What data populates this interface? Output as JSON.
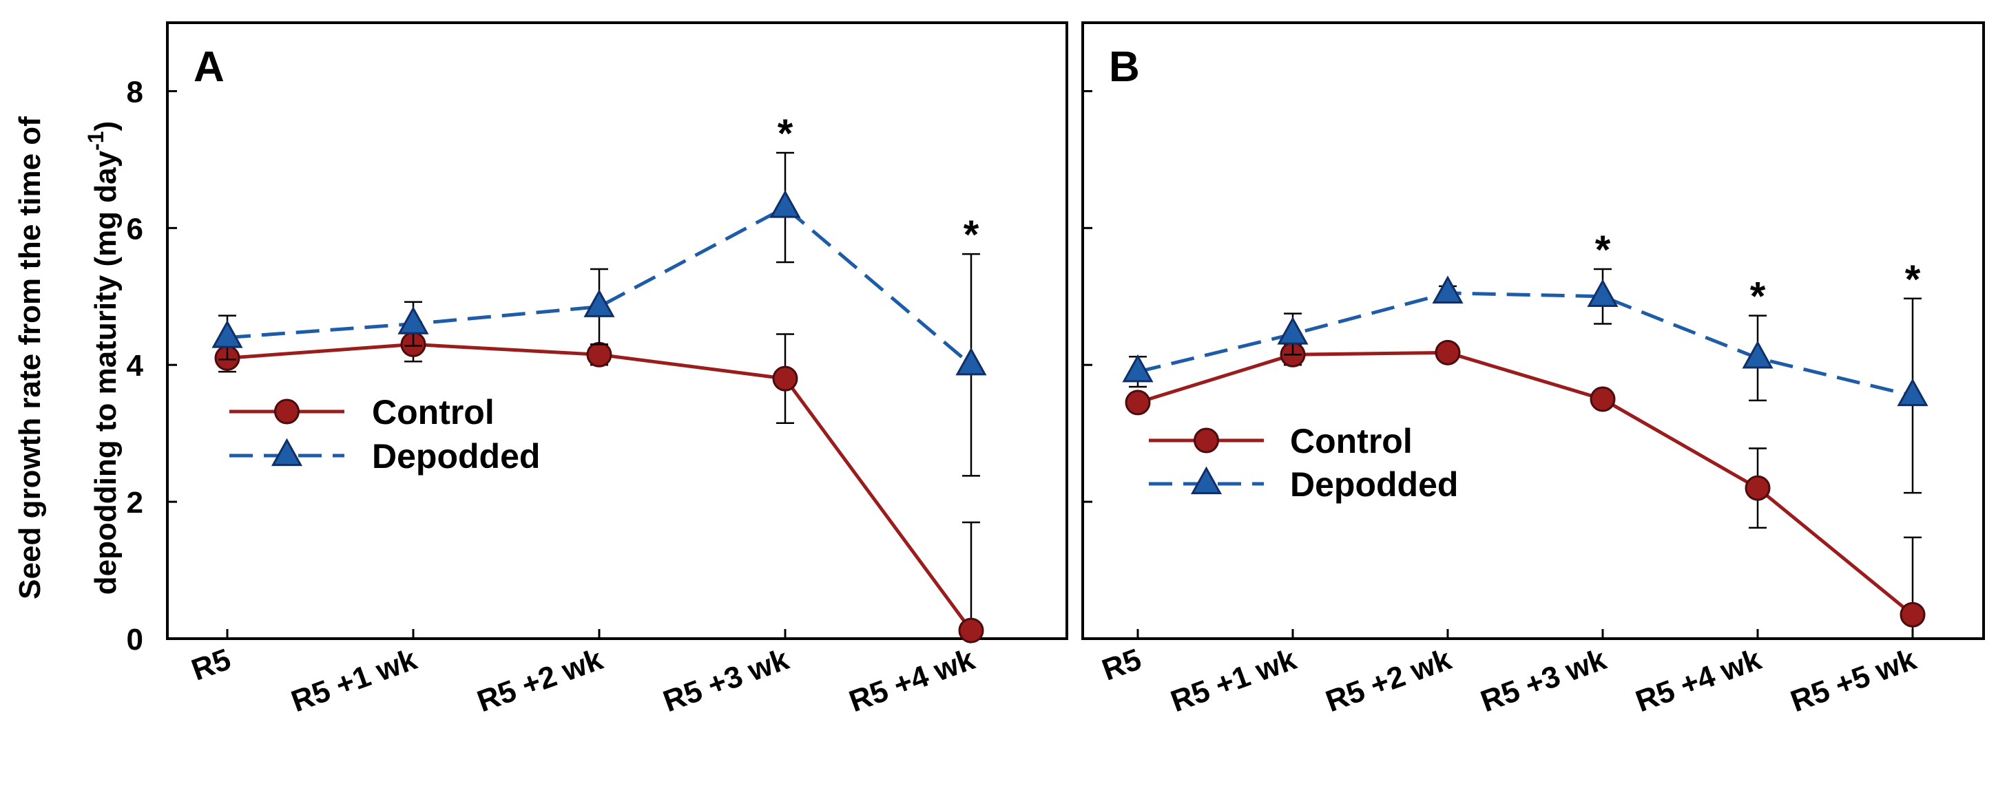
{
  "y_axis_label": {
    "line1": "Seed growth rate from the time of",
    "line2_prefix": "depodding to maturity (mg day",
    "line2_sup": "-1",
    "line2_suffix": ")"
  },
  "legend_labels": {
    "control": "Control",
    "depodded": "Depodded"
  },
  "colors": {
    "control": "#9b1c1c",
    "depodded": "#1f5ca8",
    "control_stroke": "#4a0c0c",
    "depodded_stroke": "#0f2f66"
  },
  "chart_data": [
    {
      "type": "line",
      "panel_label": "A",
      "categories": [
        "R5",
        "R5 +1 wk",
        "R5 +2 wk",
        "R5 +3 wk",
        "R5 +4 wk"
      ],
      "ylim": [
        0,
        9
      ],
      "yticks": [
        "0",
        "2",
        "4",
        "6",
        "8"
      ],
      "series": [
        {
          "name": "Control",
          "values": [
            4.1,
            4.3,
            4.15,
            3.8,
            0.12
          ],
          "errors": [
            0.2,
            0.25,
            0.15,
            0.65,
            1.58
          ]
        },
        {
          "name": "Depodded",
          "values": [
            4.4,
            4.6,
            4.85,
            6.3,
            4.0
          ],
          "errors": [
            0.32,
            0.32,
            0.55,
            0.8,
            1.62
          ]
        }
      ],
      "significance": [
        "",
        "",
        "",
        "*",
        "*"
      ]
    },
    {
      "type": "line",
      "panel_label": "B",
      "categories": [
        "R5",
        "R5 +1 wk",
        "R5 +2 wk",
        "R5 +3 wk",
        "R5 +4 wk",
        "R5 +5 wk"
      ],
      "ylim": [
        0,
        9
      ],
      "yticks": [
        "0",
        "2",
        "4",
        "6",
        "8"
      ],
      "series": [
        {
          "name": "Control",
          "values": [
            3.45,
            4.15,
            4.18,
            3.5,
            2.2,
            0.35
          ],
          "errors": [
            0.12,
            0.15,
            0.1,
            0.1,
            0.58,
            1.13
          ]
        },
        {
          "name": "Depodded",
          "values": [
            3.9,
            4.45,
            5.05,
            5.0,
            4.1,
            3.55
          ],
          "errors": [
            0.22,
            0.3,
            0.1,
            0.4,
            0.62,
            1.42
          ]
        }
      ],
      "significance": [
        "",
        "",
        "",
        "*",
        "*",
        "*"
      ]
    }
  ]
}
